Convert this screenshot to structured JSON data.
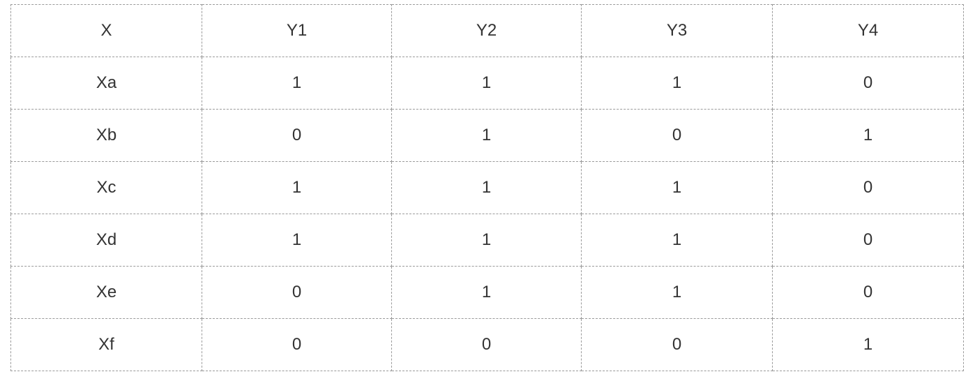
{
  "table": {
    "headers": [
      "X",
      "Y1",
      "Y2",
      "Y3",
      "Y4"
    ],
    "rows": [
      [
        "Xa",
        "1",
        "1",
        "1",
        "0"
      ],
      [
        "Xb",
        "0",
        "1",
        "0",
        "1"
      ],
      [
        "Xc",
        "1",
        "1",
        "1",
        "0"
      ],
      [
        "Xd",
        "1",
        "1",
        "1",
        "0"
      ],
      [
        "Xe",
        "0",
        "1",
        "1",
        "0"
      ],
      [
        "Xf",
        "0",
        "0",
        "0",
        "1"
      ]
    ]
  }
}
